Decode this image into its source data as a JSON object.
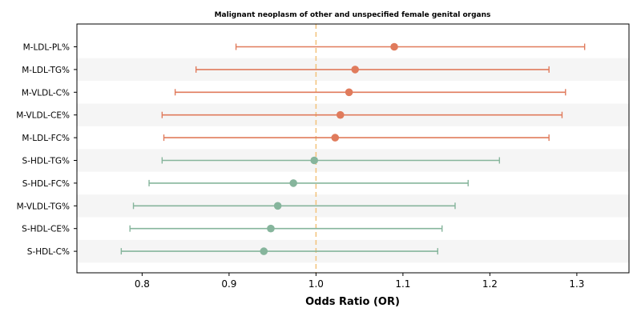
{
  "chart_data": {
    "type": "forest",
    "title": "Malignant neoplasm of other and unspecified female genital organs",
    "xlabel": "Odds Ratio (OR)",
    "xlim": [
      0.725,
      1.36
    ],
    "xticks": [
      "0.8",
      "0.9",
      "1.0",
      "1.1",
      "1.2",
      "1.3"
    ],
    "reference_line": 1.0,
    "colors": {
      "positive": "#e07b5c",
      "negative": "#86b59c",
      "reference": "#f3c27a",
      "band": "#f5f5f5"
    },
    "rows": [
      {
        "label": "M-LDL-PL%",
        "or": 1.09,
        "lower": 0.908,
        "upper": 1.309,
        "group": "positive"
      },
      {
        "label": "M-LDL-TG%",
        "or": 1.045,
        "lower": 0.862,
        "upper": 1.268,
        "group": "positive"
      },
      {
        "label": "M-VLDL-C%",
        "or": 1.038,
        "lower": 0.838,
        "upper": 1.287,
        "group": "positive"
      },
      {
        "label": "M-VLDL-CE%",
        "or": 1.028,
        "lower": 0.823,
        "upper": 1.283,
        "group": "positive"
      },
      {
        "label": "M-LDL-FC%",
        "or": 1.022,
        "lower": 0.825,
        "upper": 1.268,
        "group": "positive"
      },
      {
        "label": "S-HDL-TG%",
        "or": 0.998,
        "lower": 0.823,
        "upper": 1.211,
        "group": "negative"
      },
      {
        "label": "S-HDL-FC%",
        "or": 0.974,
        "lower": 0.808,
        "upper": 1.175,
        "group": "negative"
      },
      {
        "label": "M-VLDL-TG%",
        "or": 0.956,
        "lower": 0.79,
        "upper": 1.16,
        "group": "negative"
      },
      {
        "label": "S-HDL-CE%",
        "or": 0.948,
        "lower": 0.786,
        "upper": 1.145,
        "group": "negative"
      },
      {
        "label": "S-HDL-C%",
        "or": 0.94,
        "lower": 0.776,
        "upper": 1.14,
        "group": "negative"
      }
    ]
  }
}
